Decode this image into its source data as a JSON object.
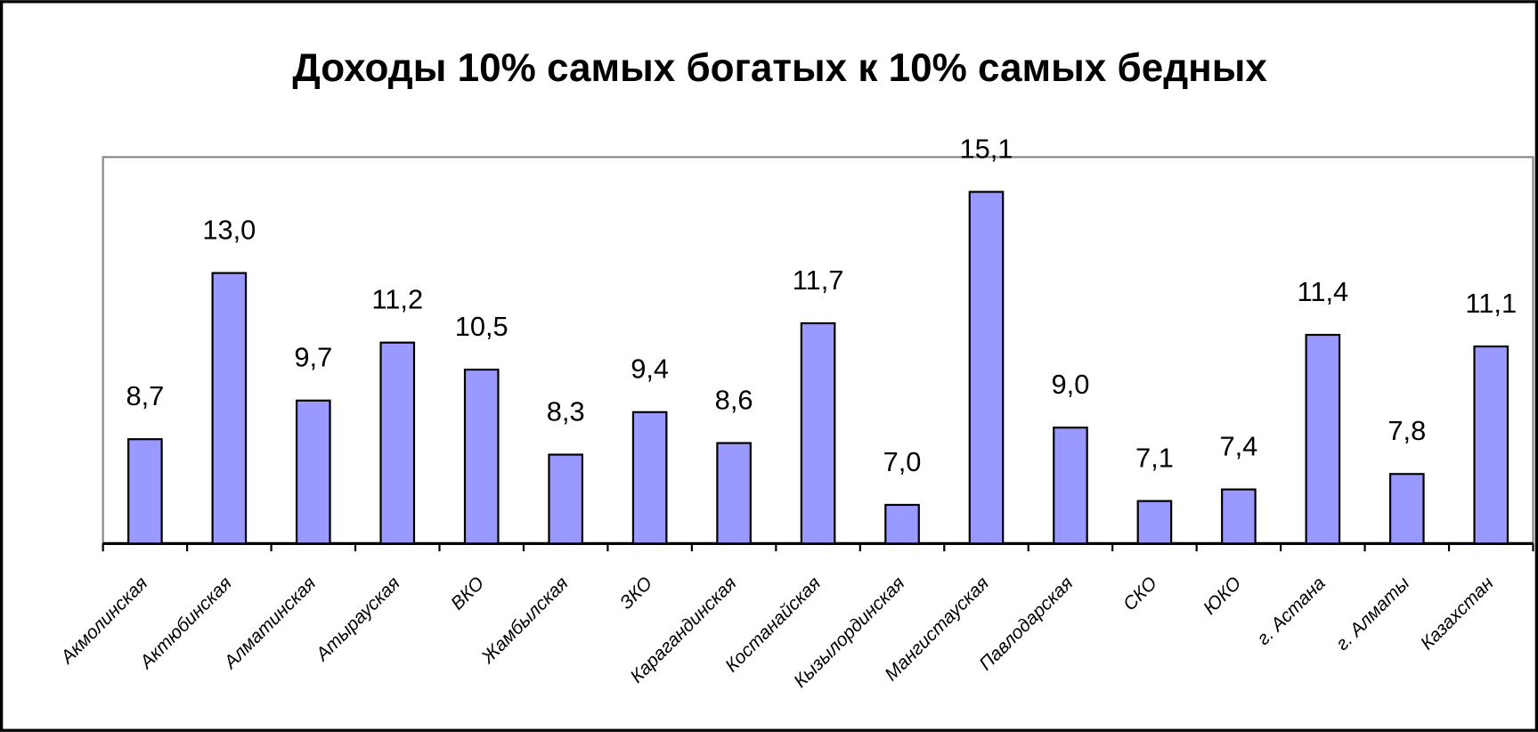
{
  "chart_data": {
    "type": "bar",
    "title": "Доходы 10% самых богатых к 10% самых бедных",
    "categories": [
      "Акмолинская",
      "Актюбинская",
      "Алматинская",
      "Атырауская",
      "ВКО",
      "Жамбылская",
      "ЗКО",
      "Карагандинская",
      "Костанайская",
      "Кызылординская",
      "Мангистауская",
      "Павлодарская",
      "СКО",
      "ЮКО",
      "г. Астана",
      "г. Алматы",
      "Казахстан"
    ],
    "values": [
      8.7,
      13.0,
      9.7,
      11.2,
      10.5,
      8.3,
      9.4,
      8.6,
      11.7,
      7.0,
      15.1,
      9.0,
      7.1,
      7.4,
      11.4,
      7.8,
      11.1
    ],
    "value_labels": [
      "8,7",
      "13,0",
      "9,7",
      "11,2",
      "10,5",
      "8,3",
      "9,4",
      "8,6",
      "11,7",
      "7,0",
      "15,1",
      "9,0",
      "7,1",
      "7,4",
      "11,4",
      "7,8",
      "11,1"
    ],
    "color": "#9999ff",
    "ylim": [
      6,
      16
    ]
  }
}
